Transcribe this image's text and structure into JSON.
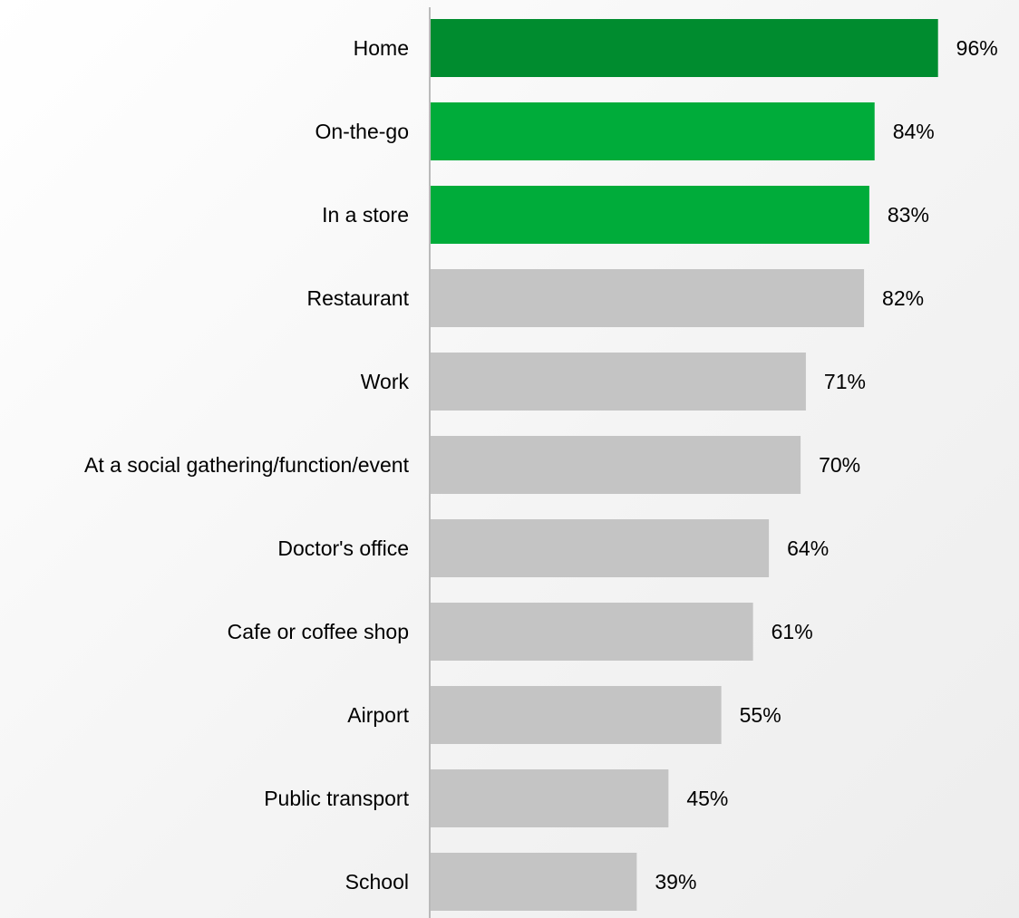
{
  "chart_data": {
    "type": "bar",
    "orientation": "horizontal",
    "categories": [
      "Home",
      "On-the-go",
      "In a store",
      "Restaurant",
      "Work",
      "At a social gathering/function/event",
      "Doctor's office",
      "Cafe or coffee shop",
      "Airport",
      "Public transport",
      "School"
    ],
    "values": [
      96,
      84,
      83,
      82,
      71,
      70,
      64,
      61,
      55,
      45,
      39
    ],
    "value_labels": [
      "96%",
      "84%",
      "83%",
      "82%",
      "71%",
      "70%",
      "64%",
      "61%",
      "55%",
      "45%",
      "39%"
    ],
    "bar_colors": [
      "#008C2F",
      "#00AC3A",
      "#00AC3A",
      "#C4C4C4",
      "#C4C4C4",
      "#C4C4C4",
      "#C4C4C4",
      "#C4C4C4",
      "#C4C4C4",
      "#C4C4C4",
      "#C4C4C4"
    ],
    "unit": "%",
    "xlim": [
      0,
      100
    ],
    "title": "",
    "xlabel": "",
    "ylabel": "",
    "grid": false,
    "legend": "none",
    "axis_color": "#A6A6A6"
  }
}
